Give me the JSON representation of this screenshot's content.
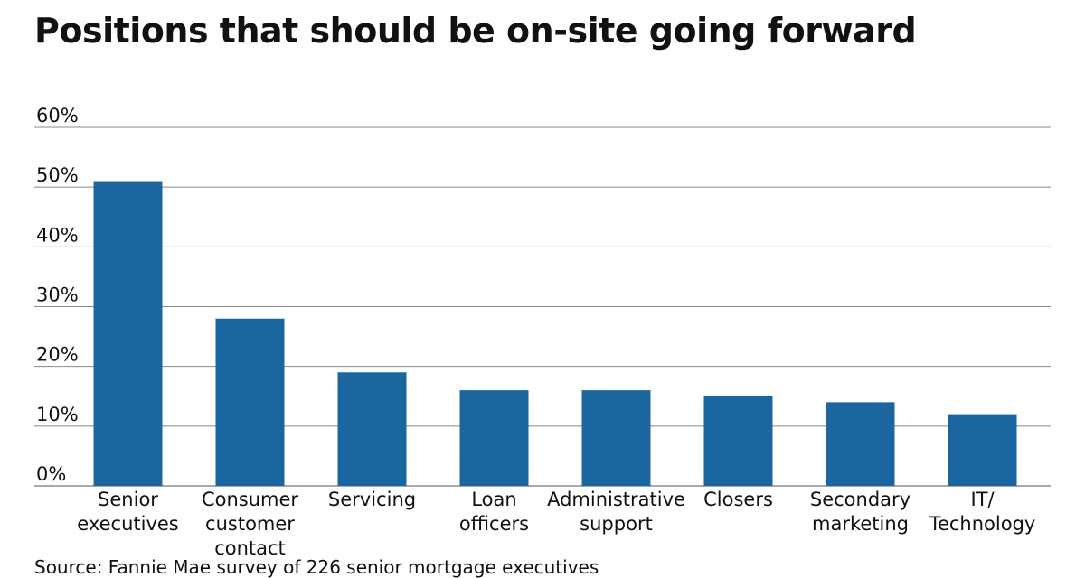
{
  "chart_data": {
    "type": "bar",
    "title": "Positions that should be on-site going forward",
    "categories": [
      "Senior executives",
      "Consumer customer contact",
      "Servicing",
      "Loan officers",
      "Administrative support",
      "Closers",
      "Secondary marketing",
      "IT/ Technology"
    ],
    "values": [
      51,
      28,
      19,
      16,
      16,
      15,
      14,
      12
    ],
    "color": "#1c669f",
    "ylim": [
      0,
      60
    ],
    "yticks": [
      {
        "value": 0,
        "label": "0%"
      },
      {
        "value": 10,
        "label": "10%"
      },
      {
        "value": 20,
        "label": "20%"
      },
      {
        "value": 30,
        "label": "30%"
      },
      {
        "value": 40,
        "label": "40%"
      },
      {
        "value": 50,
        "label": "50%"
      },
      {
        "value": 60,
        "label": "60%"
      }
    ],
    "grid": true,
    "source": "Source: Fannie Mae survey of 226 senior mortgage executives"
  }
}
